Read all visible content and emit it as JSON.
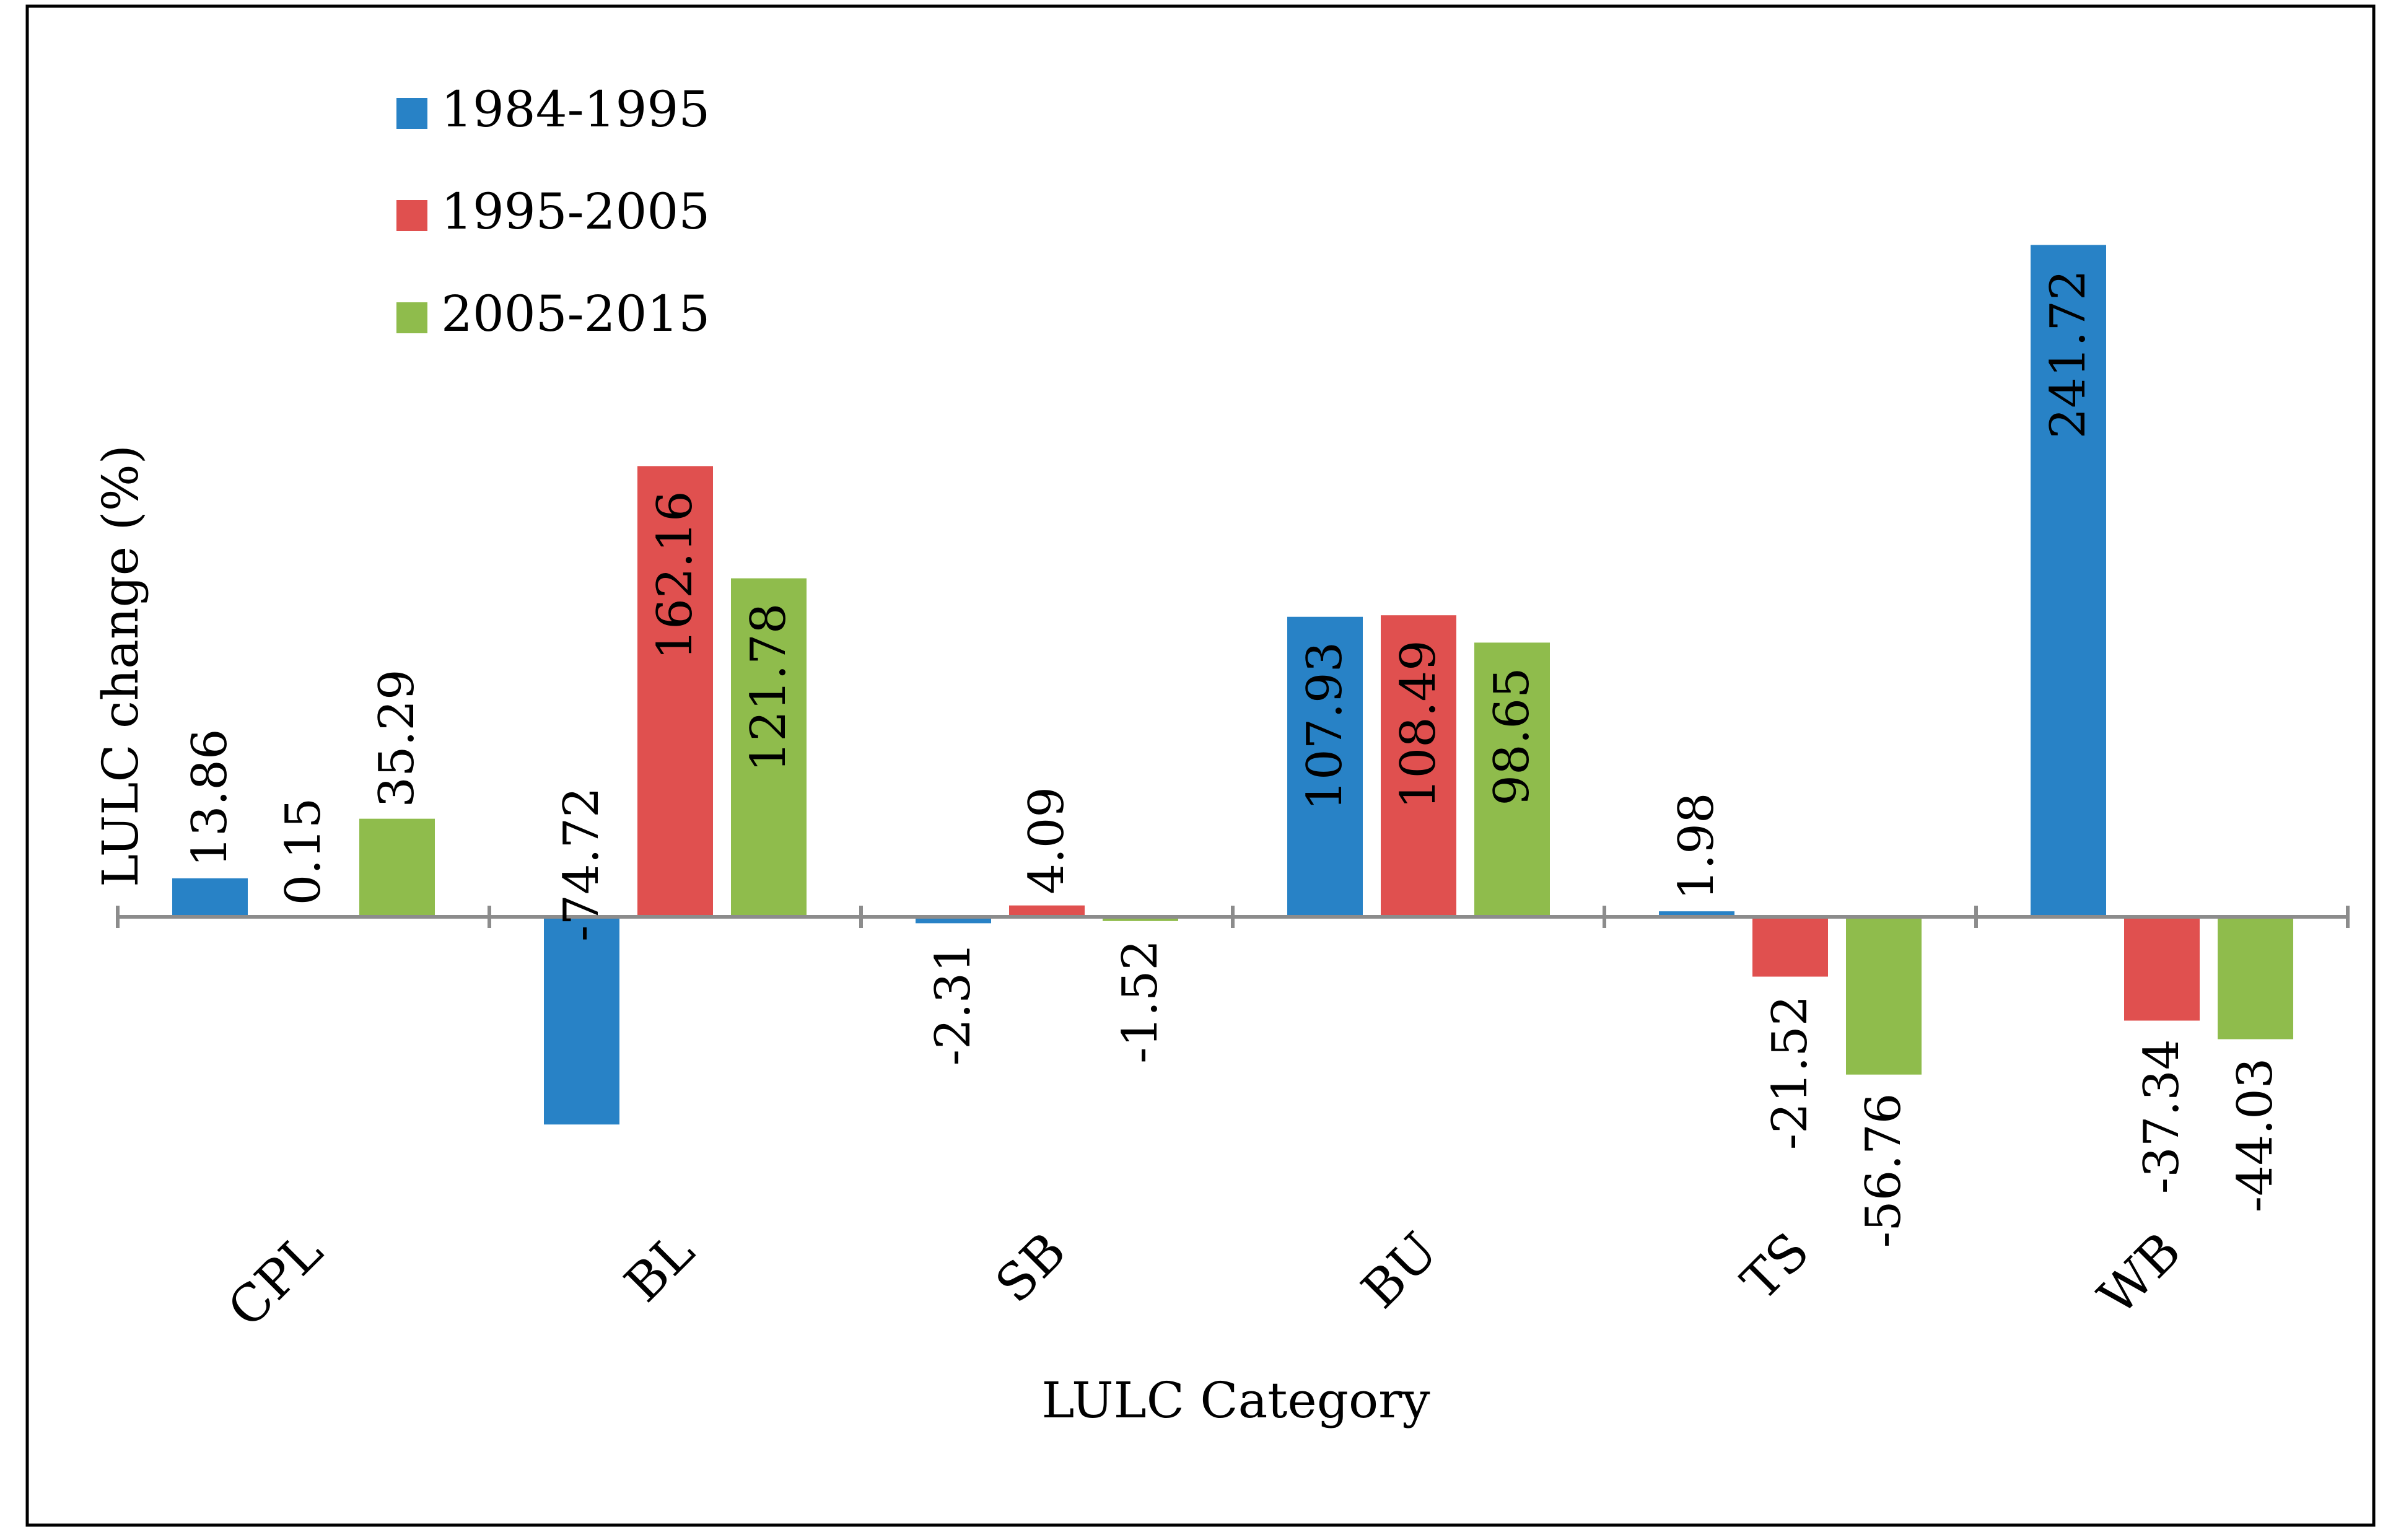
{
  "chart_data": {
    "type": "bar",
    "title": "",
    "xlabel": "LULC Category",
    "ylabel": "LULC change (%)",
    "categories": [
      "CPL",
      "BL",
      "SB",
      "BU",
      "TS",
      "WB"
    ],
    "ylim": [
      -100,
      260
    ],
    "grid": false,
    "legend_position": "top-left",
    "series": [
      {
        "name": "1984-1995",
        "color": "#2882c6",
        "values": [
          13.86,
          -74.72,
          -2.31,
          107.93,
          1.98,
          241.72
        ],
        "labels": [
          "13.86",
          "-74.72",
          "-2.31",
          "107.93",
          "1.98",
          "241.72"
        ]
      },
      {
        "name": "1995-2005",
        "color": "#e0504f",
        "values": [
          0.15,
          162.16,
          4.09,
          108.49,
          -21.52,
          -37.34
        ],
        "labels": [
          "0.15",
          "162.16",
          "4.09",
          "108.49",
          "-21.52",
          "-37.34"
        ]
      },
      {
        "name": "2005-2015",
        "color": "#8fbc4c",
        "values": [
          35.29,
          121.78,
          -1.52,
          98.65,
          -56.76,
          -44.03
        ],
        "labels": [
          "35.29",
          "121.78",
          "-1.52",
          "98.65",
          "-56.76",
          "-44.03"
        ]
      }
    ]
  }
}
